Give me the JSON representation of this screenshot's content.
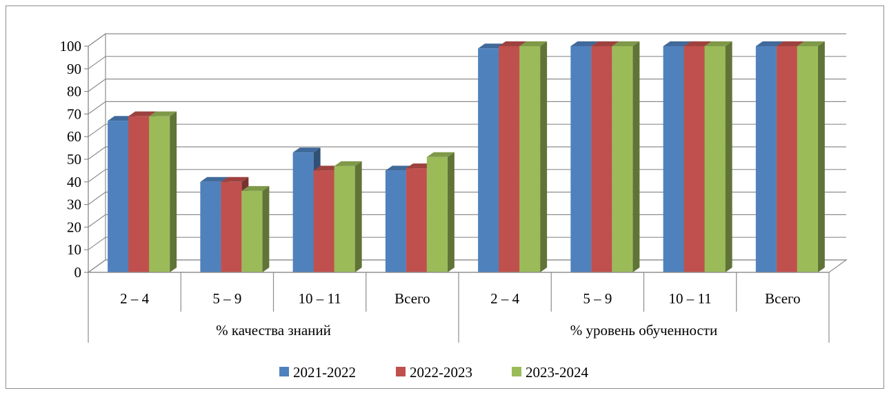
{
  "chart_data": {
    "type": "bar",
    "title": "",
    "xlabel": "",
    "ylabel": "",
    "ylim": [
      0,
      100
    ],
    "yticks": [
      0,
      10,
      20,
      30,
      40,
      50,
      60,
      70,
      80,
      90,
      100
    ],
    "grid": true,
    "legend_position": "bottom",
    "groups": [
      {
        "label": "% качества знаний",
        "categories": [
          "2 – 4",
          "5 – 9",
          "10 – 11",
          "Всего"
        ]
      },
      {
        "label": "% уровень обученности",
        "categories": [
          "2 – 4",
          "5 – 9",
          "10 – 11",
          "Всего"
        ]
      }
    ],
    "categories": [
      "2 – 4",
      "5 – 9",
      "10 – 11",
      "Всего",
      "2 – 4",
      "5 – 9",
      "10 – 11",
      "Всего"
    ],
    "series": [
      {
        "name": "2021-2022",
        "color": "#4f81bd",
        "values": [
          67,
          40,
          53,
          45,
          99,
          100,
          100,
          100
        ]
      },
      {
        "name": "2022-2023",
        "color": "#c0504d",
        "values": [
          69,
          40,
          45,
          46,
          100,
          100,
          100,
          100
        ]
      },
      {
        "name": "2023-2024",
        "color": "#9bbb59",
        "values": [
          69,
          36,
          47,
          51,
          100,
          100,
          100,
          100
        ]
      }
    ]
  }
}
